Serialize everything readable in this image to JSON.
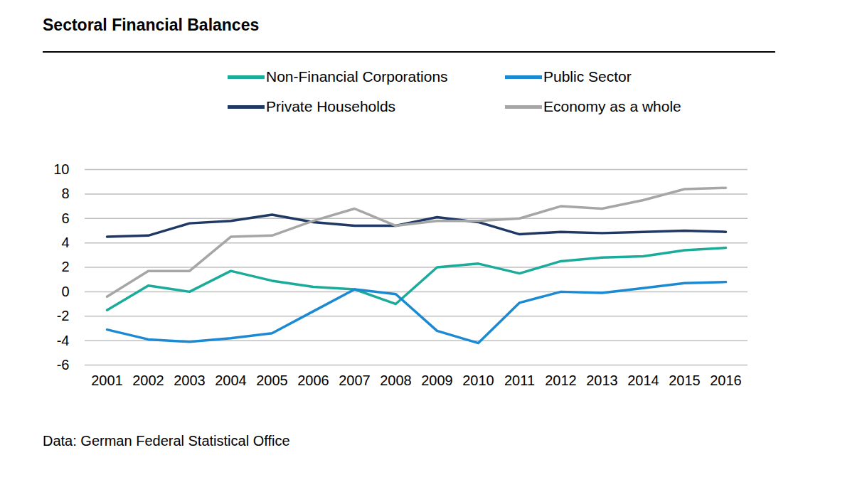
{
  "chart_data": {
    "type": "line",
    "title": "Sectoral Financial Balances",
    "source": "Data: German Federal Statistical Office",
    "categories": [
      "2001",
      "2002",
      "2003",
      "2004",
      "2005",
      "2006",
      "2007",
      "2008",
      "2009",
      "2010",
      "2011",
      "2012",
      "2013",
      "2014",
      "2015",
      "2016"
    ],
    "series": [
      {
        "name": "Non-Financial Corporations",
        "color": "#1aab9b",
        "values": [
          -1.5,
          0.5,
          0.0,
          1.7,
          0.9,
          0.4,
          0.2,
          -1.0,
          2.0,
          2.3,
          1.5,
          2.5,
          2.8,
          2.9,
          3.4,
          3.6
        ]
      },
      {
        "name": "Public Sector",
        "color": "#1b8ad3",
        "values": [
          -3.1,
          -3.9,
          -4.1,
          -3.8,
          -3.4,
          -1.6,
          0.2,
          -0.2,
          -3.2,
          -4.2,
          -0.9,
          0.0,
          -0.1,
          0.3,
          0.7,
          0.8
        ]
      },
      {
        "name": "Private Households",
        "color": "#1f3864",
        "values": [
          4.5,
          4.6,
          5.6,
          5.8,
          6.3,
          5.7,
          5.4,
          5.4,
          6.1,
          5.7,
          4.7,
          4.9,
          4.8,
          4.9,
          5.0,
          4.9
        ]
      },
      {
        "name": "Economy as a whole",
        "color": "#a6a6a6",
        "values": [
          -0.4,
          1.7,
          1.7,
          4.5,
          4.6,
          5.8,
          6.8,
          5.4,
          5.8,
          5.8,
          6.0,
          7.0,
          6.8,
          7.5,
          8.4,
          8.5
        ]
      }
    ],
    "ylim": [
      -6,
      10
    ],
    "yticks": [
      -6,
      -4,
      -2,
      0,
      2,
      4,
      6,
      8,
      10
    ],
    "grid": true,
    "legend": "top"
  }
}
